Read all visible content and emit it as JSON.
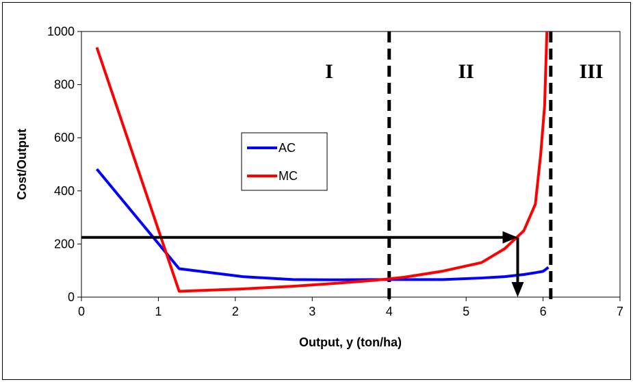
{
  "chart_data": {
    "type": "line",
    "title": "",
    "xlabel": "Output, y (ton/ha)",
    "ylabel": "Cost/Output",
    "xlim": [
      0,
      7
    ],
    "ylim": [
      0,
      1000
    ],
    "x_ticks": [
      "0",
      "1",
      "2",
      "3",
      "4",
      "5",
      "6",
      "7"
    ],
    "y_ticks": [
      "0",
      "200",
      "400",
      "600",
      "800",
      "1000"
    ],
    "grid": false,
    "legend_position": "center-left",
    "series": [
      {
        "name": "AC",
        "color": "#0000ff",
        "x": [
          0.2,
          1.27,
          2.1,
          2.75,
          3.3,
          3.8,
          4.2,
          4.7,
          5.2,
          5.5,
          5.75,
          5.9,
          6.0,
          6.07
        ],
        "y": [
          482,
          107,
          77,
          66,
          65,
          66,
          66,
          66,
          72,
          77,
          85,
          92,
          97,
          112
        ]
      },
      {
        "name": "MC",
        "color": "#ff0000",
        "x": [
          0.2,
          1.27,
          2.1,
          2.75,
          3.3,
          3.8,
          4.2,
          4.7,
          5.2,
          5.5,
          5.75,
          5.9,
          5.97,
          6.02,
          6.05
        ],
        "y": [
          940,
          22,
          31,
          41,
          52,
          63,
          75,
          98,
          130,
          182,
          250,
          350,
          540,
          720,
          1000
        ]
      }
    ],
    "region_labels": [
      "I",
      "II",
      "III"
    ],
    "vertical_dashed_lines_x": [
      4.0,
      6.1
    ],
    "annotation_arrows": [
      {
        "from": [
          0,
          225
        ],
        "to": [
          5.67,
          225
        ],
        "direction": "right",
        "color": "#000000"
      },
      {
        "from": [
          5.67,
          225
        ],
        "to": [
          5.67,
          0
        ],
        "direction": "down",
        "color": "#000000"
      }
    ]
  }
}
